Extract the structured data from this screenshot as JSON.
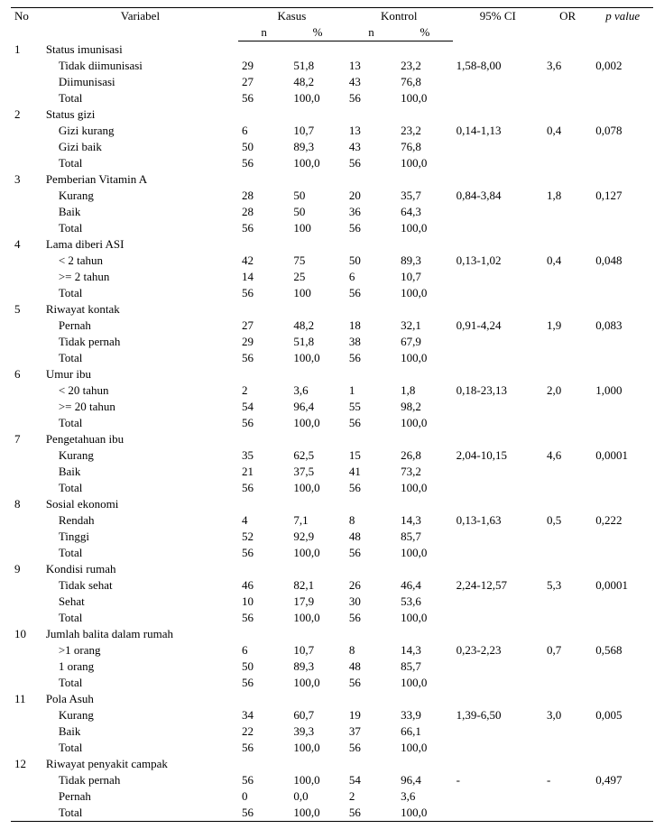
{
  "headers": {
    "no": "No",
    "variabel": "Variabel",
    "kasus": "Kasus",
    "kontrol": "Kontrol",
    "ci": "95% CI",
    "or": "OR",
    "pv": "p value",
    "n": "n",
    "pct": "%"
  },
  "groups": [
    {
      "no": "1",
      "label": "Status imunisasi",
      "ci": "1,58-8,00",
      "or": "3,6",
      "pv": "0,002",
      "rows": [
        {
          "label": "Tidak diimunisasi",
          "n1": "29",
          "p1": "51,8",
          "n2": "13",
          "p2": "23,2"
        },
        {
          "label": "Diimunisasi",
          "n1": "27",
          "p1": "48,2",
          "n2": "43",
          "p2": "76,8"
        },
        {
          "label": "Total",
          "n1": "56",
          "p1": "100,0",
          "n2": "56",
          "p2": "100,0"
        }
      ]
    },
    {
      "no": "2",
      "label": "Status gizi",
      "ci": "0,14-1,13",
      "or": "0,4",
      "pv": "0,078",
      "rows": [
        {
          "label": "Gizi kurang",
          "n1": "6",
          "p1": "10,7",
          "n2": "13",
          "p2": "23,2"
        },
        {
          "label": "Gizi baik",
          "n1": "50",
          "p1": "89,3",
          "n2": "43",
          "p2": "76,8"
        },
        {
          "label": "Total",
          "n1": "56",
          "p1": "100,0",
          "n2": "56",
          "p2": "100,0"
        }
      ]
    },
    {
      "no": "3",
      "label": "Pemberian Vitamin A",
      "ci": "0,84-3,84",
      "or": "1,8",
      "pv": "0,127",
      "rows": [
        {
          "label": "Kurang",
          "n1": "28",
          "p1": "50",
          "n2": "20",
          "p2": "35,7"
        },
        {
          "label": "Baik",
          "n1": "28",
          "p1": "50",
          "n2": "36",
          "p2": "64,3"
        },
        {
          "label": "Total",
          "n1": "56",
          "p1": "100",
          "n2": "56",
          "p2": "100,0"
        }
      ]
    },
    {
      "no": "4",
      "label": "Lama diberi ASI",
      "ci": "0,13-1,02",
      "or": "0,4",
      "pv": "0,048",
      "rows": [
        {
          "label": "< 2 tahun",
          "n1": "42",
          "p1": "75",
          "n2": "50",
          "p2": "89,3"
        },
        {
          "label": ">= 2 tahun",
          "n1": "14",
          "p1": "25",
          "n2": "6",
          "p2": "10,7"
        },
        {
          "label": "Total",
          "n1": "56",
          "p1": "100",
          "n2": "56",
          "p2": "100,0"
        }
      ]
    },
    {
      "no": "5",
      "label": "Riwayat kontak",
      "ci": "0,91-4,24",
      "or": "1,9",
      "pv": "0,083",
      "rows": [
        {
          "label": "Pernah",
          "n1": "27",
          "p1": "48,2",
          "n2": "18",
          "p2": "32,1"
        },
        {
          "label": "Tidak pernah",
          "n1": "29",
          "p1": "51,8",
          "n2": "38",
          "p2": "67,9"
        },
        {
          "label": "Total",
          "n1": "56",
          "p1": "100,0",
          "n2": "56",
          "p2": "100,0"
        }
      ]
    },
    {
      "no": "6",
      "label": "Umur ibu",
      "ci": "0,18-23,13",
      "or": "2,0",
      "pv": "1,000",
      "rows": [
        {
          "label": "< 20 tahun",
          "n1": "2",
          "p1": "3,6",
          "n2": "1",
          "p2": "1,8"
        },
        {
          "label": ">= 20 tahun",
          "n1": "54",
          "p1": "96,4",
          "n2": "55",
          "p2": "98,2"
        },
        {
          "label": "Total",
          "n1": "56",
          "p1": "100,0",
          "n2": "56",
          "p2": "100,0"
        }
      ]
    },
    {
      "no": "7",
      "label": "Pengetahuan ibu",
      "ci": "2,04-10,15",
      "or": "4,6",
      "pv": "0,0001",
      "rows": [
        {
          "label": "Kurang",
          "n1": "35",
          "p1": "62,5",
          "n2": "15",
          "p2": "26,8"
        },
        {
          "label": "Baik",
          "n1": "21",
          "p1": "37,5",
          "n2": "41",
          "p2": "73,2"
        },
        {
          "label": "Total",
          "n1": "56",
          "p1": "100,0",
          "n2": "56",
          "p2": "100,0"
        }
      ]
    },
    {
      "no": "8",
      "label": "Sosial ekonomi",
      "ci": "0,13-1,63",
      "or": "0,5",
      "pv": "0,222",
      "rows": [
        {
          "label": "Rendah",
          "n1": "4",
          "p1": "7,1",
          "n2": "8",
          "p2": "14,3"
        },
        {
          "label": "Tinggi",
          "n1": "52",
          "p1": "92,9",
          "n2": "48",
          "p2": "85,7"
        },
        {
          "label": "Total",
          "n1": "56",
          "p1": "100,0",
          "n2": "56",
          "p2": "100,0"
        }
      ]
    },
    {
      "no": "9",
      "label": "Kondisi rumah",
      "ci": "2,24-12,57",
      "or": "5,3",
      "pv": "0,0001",
      "rows": [
        {
          "label": "Tidak sehat",
          "n1": "46",
          "p1": "82,1",
          "n2": "26",
          "p2": "46,4"
        },
        {
          "label": "Sehat",
          "n1": "10",
          "p1": "17,9",
          "n2": "30",
          "p2": "53,6"
        },
        {
          "label": "Total",
          "n1": "56",
          "p1": "100,0",
          "n2": "56",
          "p2": "100,0"
        }
      ]
    },
    {
      "no": "10",
      "label": "Jumlah balita dalam rumah",
      "ci": "0,23-2,23",
      "or": "0,7",
      "pv": "0,568",
      "rows": [
        {
          "label": ">1 orang",
          "n1": "6",
          "p1": "10,7",
          "n2": "8",
          "p2": "14,3"
        },
        {
          "label": "1 orang",
          "n1": "50",
          "p1": "89,3",
          "n2": "48",
          "p2": "85,7"
        },
        {
          "label": "Total",
          "n1": "56",
          "p1": "100,0",
          "n2": "56",
          "p2": "100,0"
        }
      ]
    },
    {
      "no": "11",
      "label": "Pola Asuh",
      "ci": "1,39-6,50",
      "or": "3,0",
      "pv": "0,005",
      "rows": [
        {
          "label": "Kurang",
          "n1": "34",
          "p1": "60,7",
          "n2": "19",
          "p2": "33,9"
        },
        {
          "label": "Baik",
          "n1": "22",
          "p1": "39,3",
          "n2": "37",
          "p2": "66,1"
        },
        {
          "label": "Total",
          "n1": "56",
          "p1": "100,0",
          "n2": "56",
          "p2": "100,0"
        }
      ]
    },
    {
      "no": "12",
      "label": "Riwayat penyakit campak",
      "ci": "-",
      "or": "-",
      "pv": "0,497",
      "rows": [
        {
          "label": "Tidak pernah",
          "n1": "56",
          "p1": "100,0",
          "n2": "54",
          "p2": "96,4"
        },
        {
          "label": "Pernah",
          "n1": "0",
          "p1": "0,0",
          "n2": "2",
          "p2": "3,6"
        },
        {
          "label": "Total",
          "n1": "56",
          "p1": "100,0",
          "n2": "56",
          "p2": "100,0"
        }
      ]
    }
  ]
}
